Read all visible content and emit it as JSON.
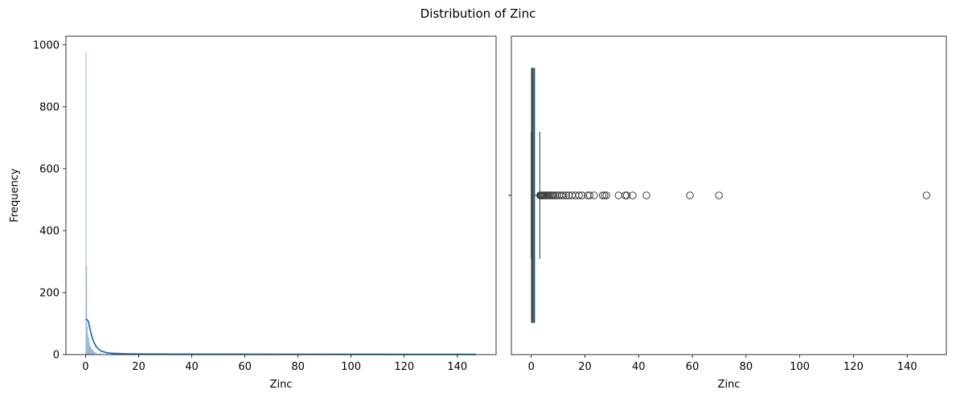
{
  "title": "Distribution of Zinc",
  "chart_data": [
    {
      "type": "histogram",
      "xlabel": "Zinc",
      "ylabel": "Frequency",
      "xlim": [
        -7.4,
        154.6
      ],
      "ylim": [
        0,
        1028
      ],
      "xticks": [
        0,
        20,
        40,
        60,
        80,
        100,
        120,
        140
      ],
      "yticks": [
        0,
        200,
        400,
        600,
        800,
        1000
      ],
      "bar_color": "#8fafd2",
      "kde_color": "#1f77b4",
      "bins": [
        {
          "x": 0.0,
          "value": 975
        },
        {
          "x": 0.25,
          "value": 285
        },
        {
          "x": 0.5,
          "value": 90
        },
        {
          "x": 0.75,
          "value": 65
        },
        {
          "x": 1.0,
          "value": 55
        },
        {
          "x": 1.25,
          "value": 40
        },
        {
          "x": 1.5,
          "value": 30
        },
        {
          "x": 1.75,
          "value": 25
        },
        {
          "x": 2.0,
          "value": 20
        },
        {
          "x": 2.25,
          "value": 18
        },
        {
          "x": 2.5,
          "value": 15
        },
        {
          "x": 2.75,
          "value": 12
        },
        {
          "x": 3.0,
          "value": 10
        },
        {
          "x": 3.5,
          "value": 8
        },
        {
          "x": 4.0,
          "value": 6
        },
        {
          "x": 5.0,
          "value": 4
        },
        {
          "x": 6.0,
          "value": 3
        },
        {
          "x": 8.0,
          "value": 2
        },
        {
          "x": 10.0,
          "value": 1
        }
      ],
      "bin_width": 0.25,
      "kde": {
        "x": [
          0,
          0.5,
          1,
          1.5,
          2,
          3,
          4,
          5,
          6,
          8,
          10,
          15,
          20,
          30,
          50,
          80,
          110,
          147
        ],
        "y": [
          115,
          113,
          108,
          90,
          70,
          42,
          26,
          17,
          11,
          6,
          4,
          2.5,
          2,
          1.5,
          1.2,
          1,
          0.8,
          0.6
        ]
      }
    },
    {
      "type": "boxplot",
      "xlabel": "Zinc",
      "xlim": [
        -7.4,
        154.6
      ],
      "xticks": [
        0,
        20,
        40,
        60,
        80,
        100,
        120,
        140
      ],
      "box_color": "#1f77b4",
      "q1": 0.1,
      "median": 0.4,
      "q3": 1.25,
      "whisker_low": 0.0,
      "whisker_high": 3.2,
      "outliers": [
        3.3,
        3.5,
        3.8,
        4.0,
        4.3,
        4.6,
        5.0,
        5.4,
        5.8,
        6.2,
        6.7,
        7.2,
        7.8,
        8.4,
        9.0,
        9.7,
        10.5,
        11.3,
        12.1,
        13.0,
        14.0,
        15.2,
        16.5,
        17.8,
        18.9,
        21.0,
        21.8,
        23.4,
        26.6,
        27.3,
        28.0,
        32.5,
        35.0,
        35.6,
        37.8,
        42.9,
        59.1,
        69.9,
        147.2
      ]
    }
  ]
}
